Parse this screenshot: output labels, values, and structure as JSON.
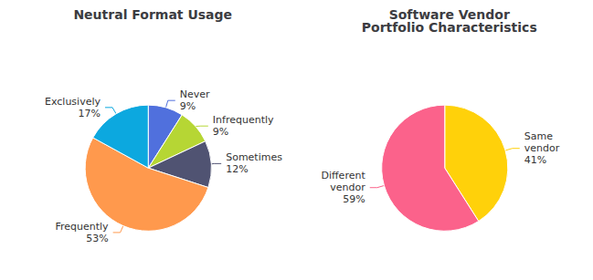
{
  "chart_data": [
    {
      "type": "pie",
      "title": "Neutral Format Usage",
      "categories": [
        "Never",
        "Infrequently",
        "Sometimes",
        "Frequently",
        "Exclusively"
      ],
      "values": [
        9,
        9,
        12,
        53,
        17
      ],
      "value_labels": [
        "9%",
        "9%",
        "12%",
        "53%",
        "17%"
      ],
      "data_labels": true
    },
    {
      "type": "pie",
      "title": "Software Vendor\nPortfolio Characteristics",
      "categories": [
        "Same\nvendor",
        "Different\nvendor"
      ],
      "values": [
        41,
        59
      ],
      "value_labels": [
        "41%",
        "59%"
      ],
      "data_labels": true
    }
  ]
}
